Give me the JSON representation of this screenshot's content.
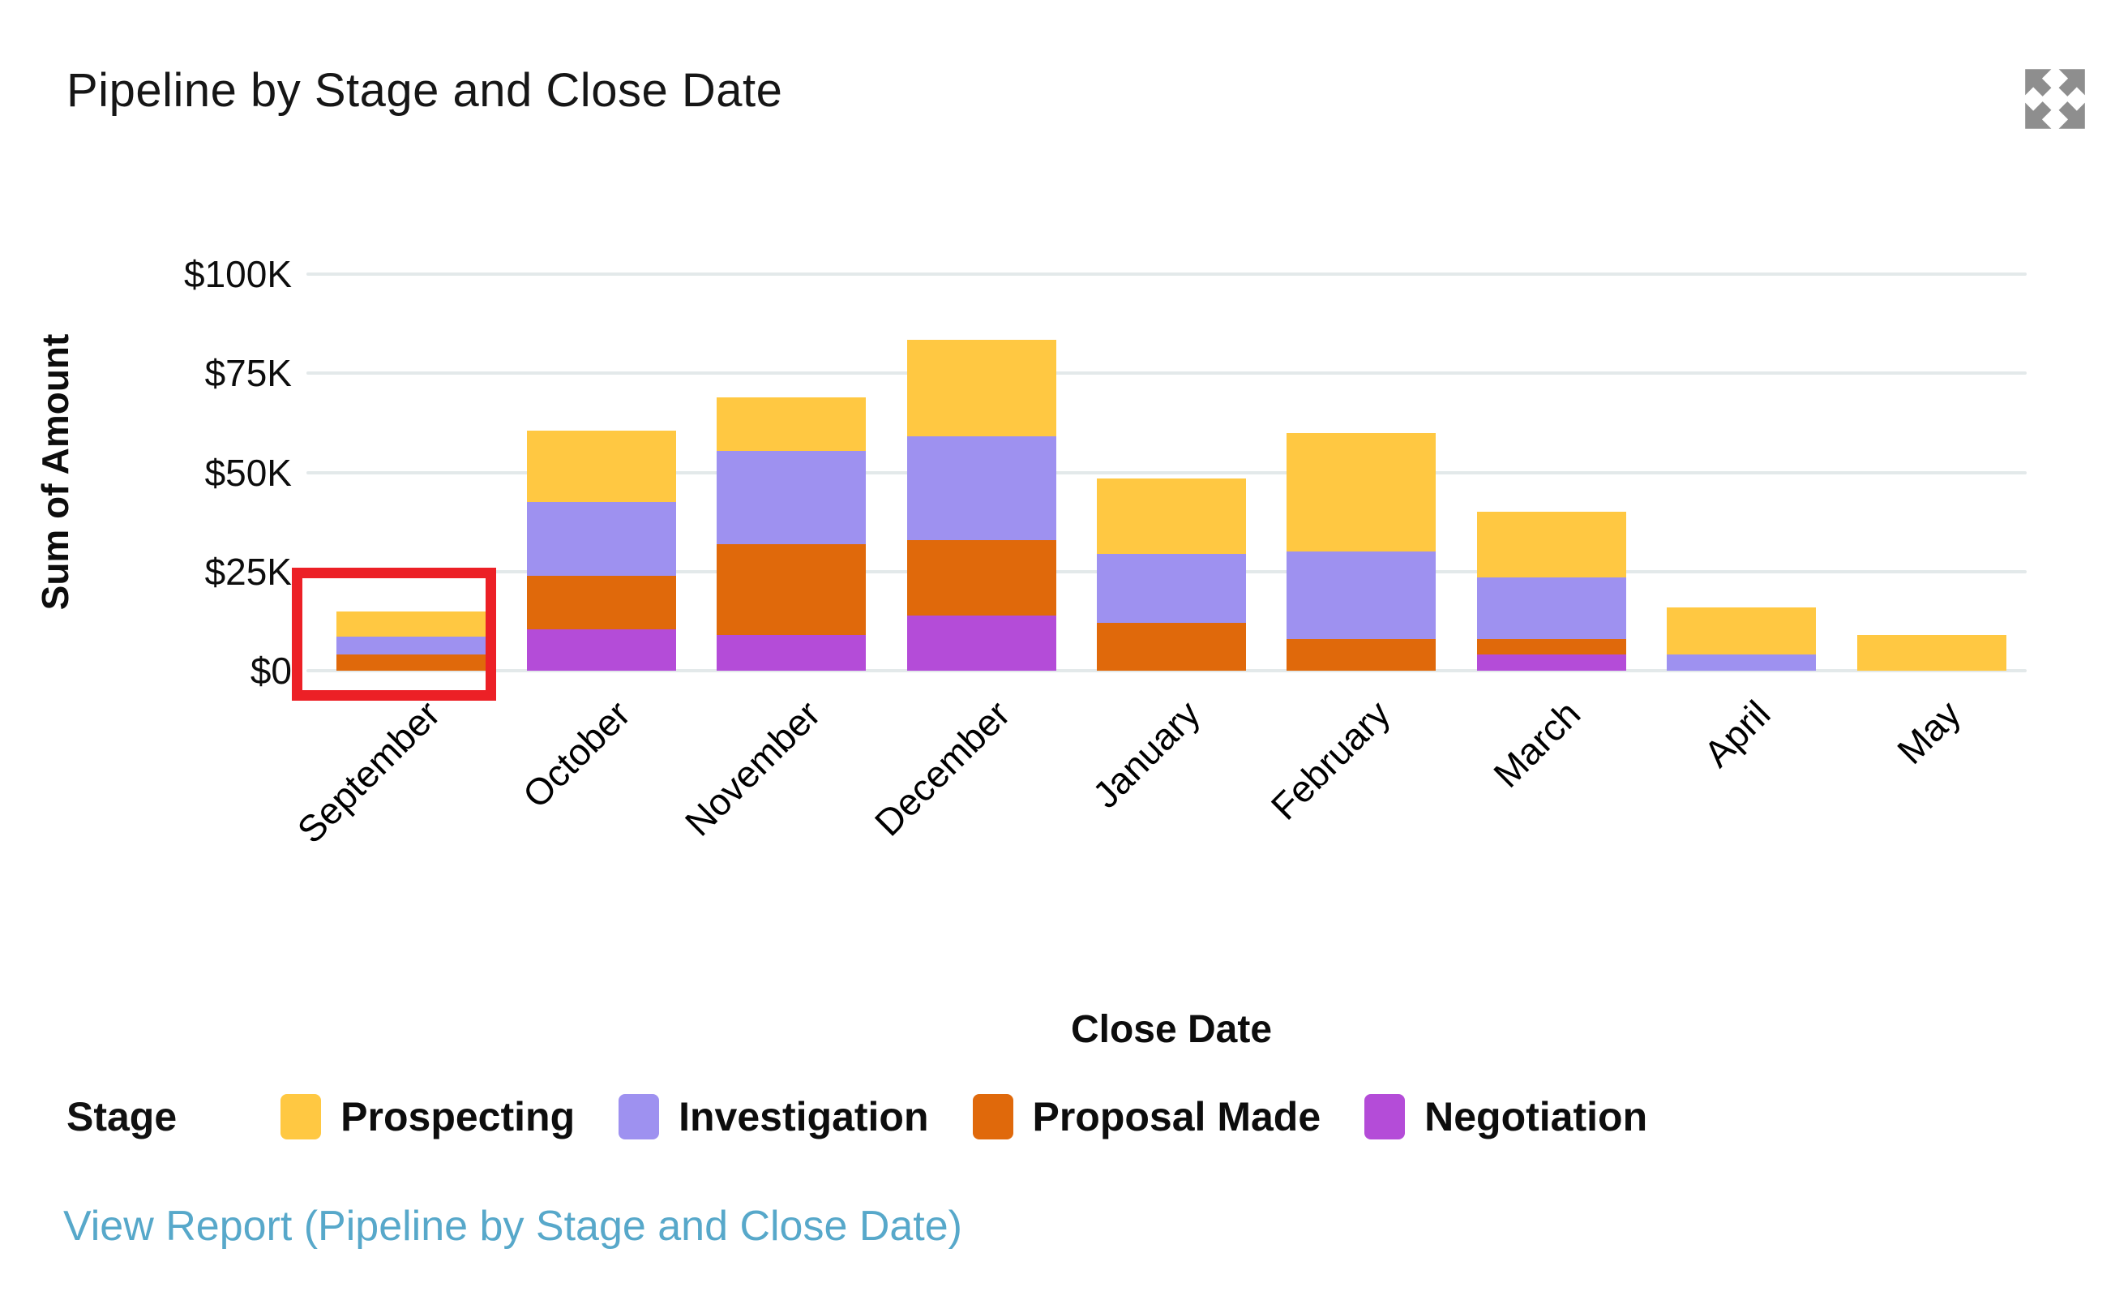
{
  "header": {
    "title": "Pipeline by Stage and Close Date"
  },
  "chart_data": {
    "type": "bar",
    "stacked": true,
    "title": "Pipeline by Stage and Close Date",
    "x_axis_title": "Close Date",
    "y_axis_title": "Sum of Amount",
    "categories": [
      "September",
      "October",
      "November",
      "December",
      "January",
      "February",
      "March",
      "April",
      "May"
    ],
    "series": [
      {
        "name": "Prospecting",
        "color": "#FFC842",
        "values": [
          6.5,
          18.0,
          13.5,
          24.5,
          19.0,
          30.0,
          16.5,
          12.0,
          9.0
        ]
      },
      {
        "name": "Investigation",
        "color": "#9E91F0",
        "values": [
          4.5,
          18.5,
          23.5,
          26.0,
          17.5,
          22.0,
          15.5,
          4.0,
          0.0
        ]
      },
      {
        "name": "Proposal Made",
        "color": "#E0690B",
        "values": [
          4.0,
          13.5,
          23.0,
          19.0,
          12.0,
          8.0,
          4.0,
          0.0,
          0.0
        ]
      },
      {
        "name": "Negotiation",
        "color": "#B44CD8",
        "values": [
          0.0,
          10.5,
          9.0,
          14.0,
          0.0,
          0.0,
          4.0,
          0.0,
          0.0
        ]
      }
    ],
    "stack_order_bottom_to_top": [
      "Negotiation",
      "Proposal Made",
      "Investigation",
      "Prospecting"
    ],
    "totals": [
      15.0,
      60.5,
      69.0,
      83.5,
      48.5,
      60.0,
      40.0,
      16.0,
      9.0
    ],
    "y_unit": "USD thousands",
    "ylim": [
      0,
      100
    ],
    "y_ticks": [
      {
        "value": 0,
        "label": "$0"
      },
      {
        "value": 25,
        "label": "$25K"
      },
      {
        "value": 50,
        "label": "$50K"
      },
      {
        "value": 75,
        "label": "$75K"
      },
      {
        "value": 100,
        "label": "$100K"
      }
    ],
    "grid": true,
    "legend_position": "bottom",
    "annotation": {
      "type": "highlight-box",
      "category": "September",
      "color": "#EC2026"
    }
  },
  "legend": {
    "title": "Stage"
  },
  "footer": {
    "link_text": "View Report (Pipeline by Stage and Close Date)"
  },
  "colors": {
    "gridline": "#E3E9EA",
    "link": "#57A8CA",
    "expand_icon": "#8E8E8E",
    "annotation": "#EC2026"
  }
}
